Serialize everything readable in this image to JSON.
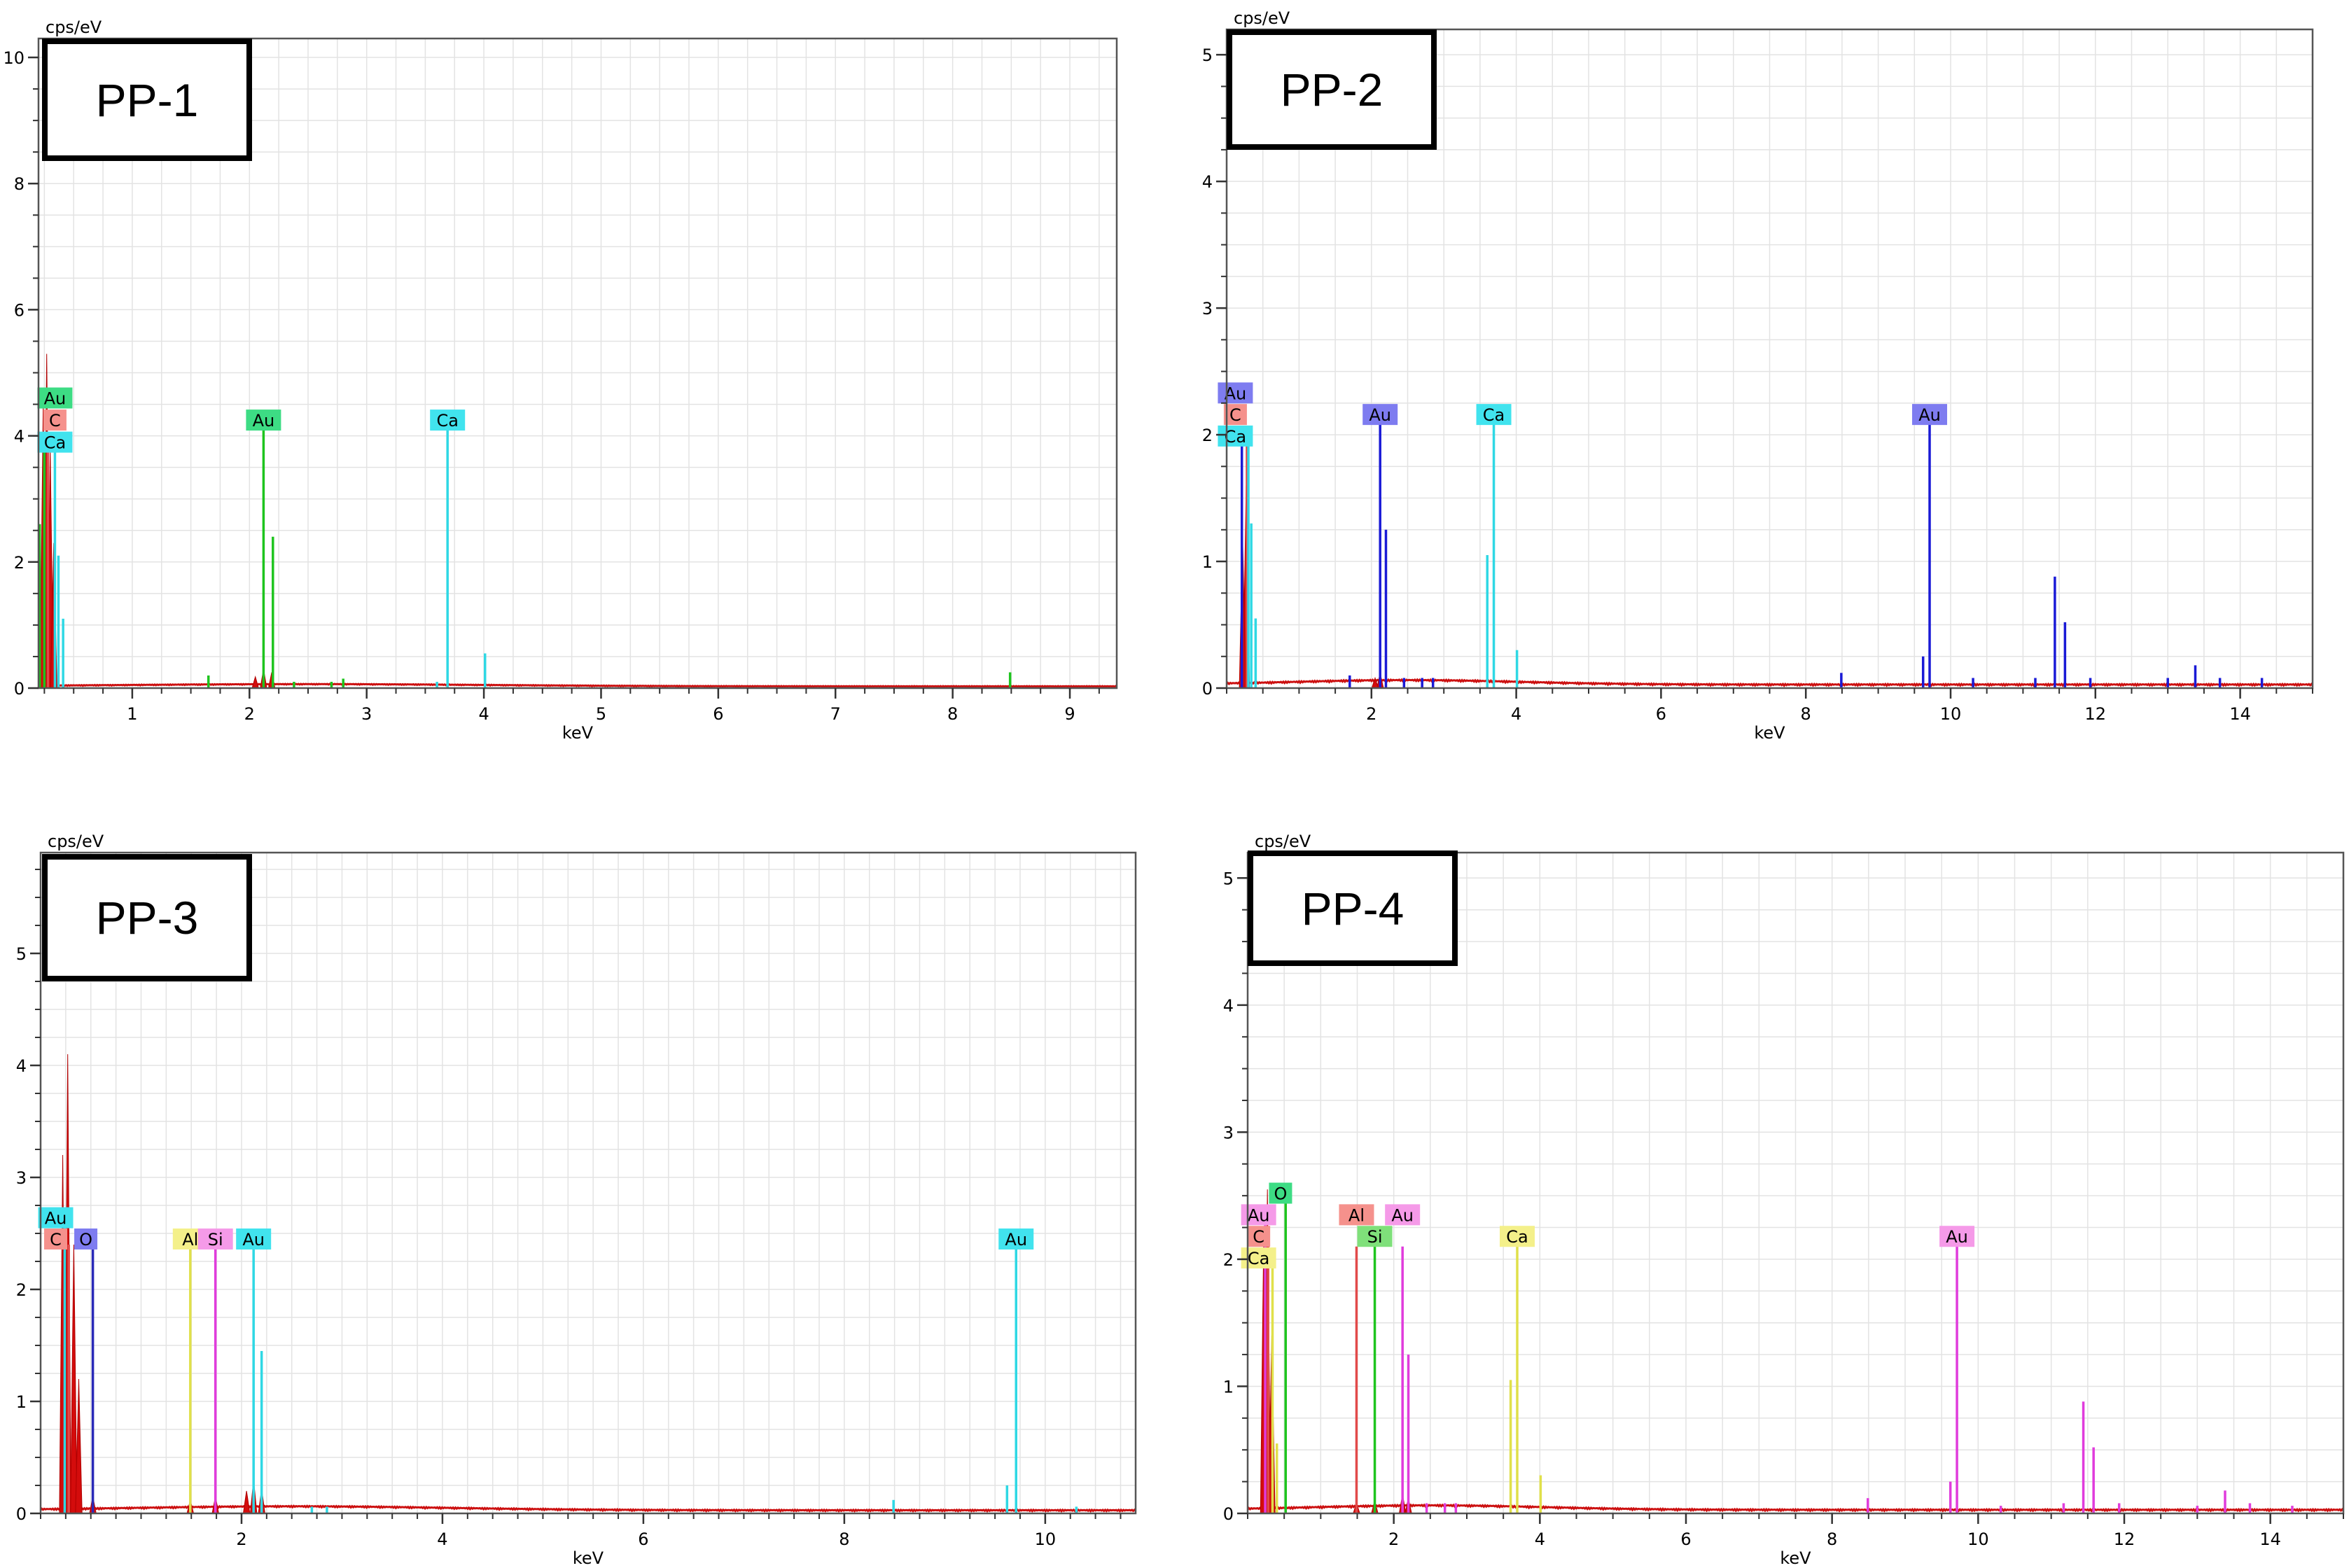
{
  "chart_data": [
    {
      "type": "bar",
      "sample_label": "PP-1",
      "ylabel": "cps/eV",
      "xlabel": "keV",
      "xlim": [
        0.2,
        9.4
      ],
      "ylim": [
        0,
        10.3
      ],
      "xticks": [
        1,
        2,
        3,
        4,
        5,
        6,
        7,
        8,
        9
      ],
      "yticks": [
        0,
        2,
        4,
        6,
        8,
        10
      ],
      "grid": true,
      "spectrum": {
        "peaks": [
          [
            0.27,
            5.3
          ],
          [
            0.24,
            4.5
          ],
          [
            0.3,
            3.8
          ],
          [
            0.33,
            2.3
          ],
          [
            2.12,
            0.3
          ],
          [
            2.19,
            0.25
          ],
          [
            2.05,
            0.18
          ]
        ]
      },
      "lines": [
        {
          "element": "Au",
          "color": "#1ec41e",
          "tag_color": "#3ddc84",
          "peaks": [
            [
              0.21,
              2.6
            ],
            [
              0.25,
              3.8
            ],
            [
              2.12,
              4.1
            ],
            [
              2.2,
              2.4
            ],
            [
              1.65,
              0.2
            ],
            [
              2.38,
              0.1
            ],
            [
              2.7,
              0.1
            ],
            [
              2.8,
              0.15
            ],
            [
              8.49,
              0.25
            ]
          ]
        },
        {
          "element": "C",
          "color": "#e24a4a",
          "tag_color": "#f5918c",
          "peaks": [
            [
              0.28,
              3.9
            ]
          ]
        },
        {
          "element": "Ca",
          "color": "#2fd8e4",
          "tag_color": "#41e3ee",
          "peaks": [
            [
              0.34,
              3.8
            ],
            [
              0.37,
              2.1
            ],
            [
              0.41,
              1.1
            ],
            [
              3.69,
              4.1
            ],
            [
              4.01,
              0.55
            ],
            [
              3.6,
              0.1
            ]
          ]
        }
      ],
      "tags": [
        {
          "text": "Au",
          "x": 0.34,
          "y": 4.6,
          "tag_color": "#3ddc84"
        },
        {
          "text": "C",
          "x": 0.34,
          "y": 4.25,
          "tag_color": "#f5918c"
        },
        {
          "text": "Ca",
          "x": 0.34,
          "y": 3.9,
          "tag_color": "#41e3ee"
        },
        {
          "text": "Au",
          "x": 2.12,
          "y": 4.25,
          "tag_color": "#3ddc84"
        },
        {
          "text": "Ca",
          "x": 3.69,
          "y": 4.25,
          "tag_color": "#41e3ee"
        }
      ]
    },
    {
      "type": "bar",
      "sample_label": "PP-2",
      "ylabel": "cps/eV",
      "xlabel": "keV",
      "xlim": [
        0,
        15
      ],
      "ylim": [
        0,
        5.2
      ],
      "xticks": [
        2,
        4,
        6,
        8,
        10,
        12,
        14
      ],
      "yticks": [
        0,
        1,
        2,
        3,
        4,
        5
      ],
      "grid": true,
      "spectrum": {
        "peaks": [
          [
            0.27,
            1.6
          ],
          [
            0.22,
            1.2
          ],
          [
            2.12,
            0.12
          ],
          [
            2.05,
            0.08
          ]
        ]
      },
      "lines": [
        {
          "element": "Au",
          "color": "#1a1ad6",
          "tag_color": "#7e7cf0",
          "peaks": [
            [
              0.21,
              2.0
            ],
            [
              2.12,
              2.1
            ],
            [
              2.2,
              1.25
            ],
            [
              1.7,
              0.1
            ],
            [
              2.45,
              0.08
            ],
            [
              2.7,
              0.08
            ],
            [
              2.85,
              0.08
            ],
            [
              8.49,
              0.12
            ],
            [
              9.62,
              0.25
            ],
            [
              9.71,
              2.1
            ],
            [
              10.31,
              0.08
            ],
            [
              11.17,
              0.08
            ],
            [
              11.44,
              0.88
            ],
            [
              11.58,
              0.52
            ],
            [
              11.93,
              0.08
            ],
            [
              13.0,
              0.08
            ],
            [
              13.38,
              0.18
            ],
            [
              13.72,
              0.08
            ],
            [
              14.3,
              0.08
            ]
          ]
        },
        {
          "element": "C",
          "color": "#e24a4a",
          "tag_color": "#f5918c",
          "peaks": [
            [
              0.28,
              2.0
            ]
          ]
        },
        {
          "element": "Ca",
          "color": "#2fd8e4",
          "tag_color": "#41e3ee",
          "peaks": [
            [
              0.3,
              2.0
            ],
            [
              0.34,
              1.3
            ],
            [
              0.4,
              0.55
            ],
            [
              3.69,
              2.1
            ],
            [
              3.6,
              1.05
            ],
            [
              4.01,
              0.3
            ]
          ]
        }
      ],
      "tags": [
        {
          "text": "Au",
          "x": 0.12,
          "y": 2.33,
          "tag_color": "#7e7cf0"
        },
        {
          "text": "C",
          "x": 0.12,
          "y": 2.16,
          "tag_color": "#f5918c"
        },
        {
          "text": "Ca",
          "x": 0.12,
          "y": 1.99,
          "tag_color": "#41e3ee"
        },
        {
          "text": "Au",
          "x": 2.12,
          "y": 2.16,
          "tag_color": "#7e7cf0"
        },
        {
          "text": "Ca",
          "x": 3.69,
          "y": 2.16,
          "tag_color": "#41e3ee"
        },
        {
          "text": "Au",
          "x": 9.71,
          "y": 2.16,
          "tag_color": "#7e7cf0"
        }
      ]
    },
    {
      "type": "bar",
      "sample_label": "PP-3",
      "ylabel": "cps/eV",
      "xlabel": "keV",
      "xlim": [
        0,
        10.9
      ],
      "ylim": [
        0,
        5.9
      ],
      "xticks": [
        2,
        4,
        6,
        8,
        10
      ],
      "yticks": [
        0,
        1,
        2,
        3,
        4,
        5
      ],
      "grid": true,
      "spectrum": {
        "peaks": [
          [
            0.27,
            4.1
          ],
          [
            0.22,
            3.2
          ],
          [
            0.33,
            2.4
          ],
          [
            0.38,
            1.2
          ],
          [
            0.52,
            0.15
          ],
          [
            1.49,
            0.12
          ],
          [
            1.74,
            0.15
          ],
          [
            2.12,
            0.3
          ],
          [
            2.2,
            0.22
          ],
          [
            2.05,
            0.2
          ]
        ]
      },
      "lines": [
        {
          "element": "Au",
          "color": "#2fd8e4",
          "tag_color": "#41e3ee",
          "peaks": [
            [
              0.24,
              2.7
            ],
            [
              2.12,
              2.4
            ],
            [
              2.2,
              1.45
            ],
            [
              8.49,
              0.12
            ],
            [
              9.62,
              0.25
            ],
            [
              9.71,
              2.4
            ],
            [
              10.31,
              0.06
            ],
            [
              2.7,
              0.06
            ],
            [
              2.85,
              0.06
            ]
          ]
        },
        {
          "element": "C",
          "color": "#e24a4a",
          "tag_color": "#f5918c",
          "peaks": [
            [
              0.28,
              2.4
            ]
          ]
        },
        {
          "element": "O",
          "color": "#2a2ab8",
          "tag_color": "#7e7cf0",
          "peaks": [
            [
              0.52,
              2.4
            ]
          ]
        },
        {
          "element": "Al",
          "color": "#e0e04a",
          "tag_color": "#f4f08a",
          "peaks": [
            [
              1.49,
              2.4
            ]
          ]
        },
        {
          "element": "Si",
          "color": "#e03cdc",
          "tag_color": "#f59ae8",
          "peaks": [
            [
              1.74,
              2.4
            ]
          ]
        }
      ],
      "tags": [
        {
          "text": "Au",
          "x": 0.15,
          "y": 2.64,
          "tag_color": "#41e3ee"
        },
        {
          "text": "C",
          "x": 0.15,
          "y": 2.45,
          "tag_color": "#f5918c"
        },
        {
          "text": "O",
          "x": 0.45,
          "y": 2.45,
          "tag_color": "#7e7cf0"
        },
        {
          "text": "Al",
          "x": 1.49,
          "y": 2.45,
          "tag_color": "#f4f08a"
        },
        {
          "text": "Si",
          "x": 1.74,
          "y": 2.45,
          "tag_color": "#f59ae8"
        },
        {
          "text": "Au",
          "x": 2.12,
          "y": 2.45,
          "tag_color": "#41e3ee"
        },
        {
          "text": "Au",
          "x": 9.71,
          "y": 2.45,
          "tag_color": "#41e3ee"
        }
      ]
    },
    {
      "type": "bar",
      "sample_label": "PP-4",
      "ylabel": "cps/eV",
      "xlabel": "keV",
      "xlim": [
        0,
        15
      ],
      "ylim": [
        0,
        5.2
      ],
      "xticks": [
        2,
        4,
        6,
        8,
        10,
        12,
        14
      ],
      "yticks": [
        0,
        1,
        2,
        3,
        4,
        5
      ],
      "grid": true,
      "spectrum": {
        "peaks": [
          [
            0.27,
            2.55
          ],
          [
            0.22,
            2.2
          ],
          [
            0.33,
            1.4
          ],
          [
            1.49,
            0.08
          ],
          [
            1.74,
            0.1
          ],
          [
            2.12,
            0.15
          ],
          [
            2.2,
            0.12
          ]
        ]
      },
      "lines": [
        {
          "element": "O",
          "color": "#1ec41e",
          "tag_color": "#3ddc84",
          "peaks": [
            [
              0.52,
              2.5
            ]
          ]
        },
        {
          "element": "Au",
          "color": "#e03cdc",
          "tag_color": "#f59ae8",
          "peaks": [
            [
              0.24,
              2.3
            ],
            [
              2.12,
              2.1
            ],
            [
              2.2,
              1.25
            ],
            [
              2.45,
              0.08
            ],
            [
              2.7,
              0.08
            ],
            [
              2.85,
              0.08
            ],
            [
              8.49,
              0.12
            ],
            [
              9.62,
              0.25
            ],
            [
              9.71,
              2.1
            ],
            [
              10.31,
              0.06
            ],
            [
              11.17,
              0.08
            ],
            [
              11.44,
              0.88
            ],
            [
              11.58,
              0.52
            ],
            [
              11.93,
              0.08
            ],
            [
              13.0,
              0.06
            ],
            [
              13.38,
              0.18
            ],
            [
              13.72,
              0.08
            ],
            [
              14.3,
              0.06
            ]
          ]
        },
        {
          "element": "C",
          "color": "#e24a4a",
          "tag_color": "#f5918c",
          "peaks": [
            [
              0.28,
              2.1
            ]
          ]
        },
        {
          "element": "Ca",
          "color": "#e0e04a",
          "tag_color": "#f4f08a",
          "peaks": [
            [
              0.34,
              1.95
            ],
            [
              0.4,
              0.55
            ],
            [
              3.69,
              2.1
            ],
            [
              3.6,
              1.05
            ],
            [
              4.01,
              0.3
            ]
          ]
        },
        {
          "element": "Al",
          "color": "#e24a4a",
          "tag_color": "#f5918c",
          "peaks": [
            [
              1.49,
              2.1
            ]
          ]
        },
        {
          "element": "Si",
          "color": "#1ec41e",
          "tag_color": "#7fe07a",
          "peaks": [
            [
              1.74,
              2.1
            ]
          ]
        }
      ],
      "tags": [
        {
          "text": "O",
          "x": 0.45,
          "y": 2.52,
          "tag_color": "#3ddc84"
        },
        {
          "text": "Au",
          "x": 0.15,
          "y": 2.35,
          "tag_color": "#f59ae8"
        },
        {
          "text": "C",
          "x": 0.15,
          "y": 2.18,
          "tag_color": "#f5918c"
        },
        {
          "text": "Ca",
          "x": 0.15,
          "y": 2.01,
          "tag_color": "#f4f08a"
        },
        {
          "text": "Al",
          "x": 1.49,
          "y": 2.35,
          "tag_color": "#f5918c"
        },
        {
          "text": "Au",
          "x": 2.12,
          "y": 2.35,
          "tag_color": "#f59ae8"
        },
        {
          "text": "Si",
          "x": 1.74,
          "y": 2.18,
          "tag_color": "#7fe07a"
        },
        {
          "text": "Ca",
          "x": 3.69,
          "y": 2.18,
          "tag_color": "#f4f08a"
        },
        {
          "text": "Au",
          "x": 9.71,
          "y": 2.18,
          "tag_color": "#f59ae8"
        }
      ]
    }
  ]
}
